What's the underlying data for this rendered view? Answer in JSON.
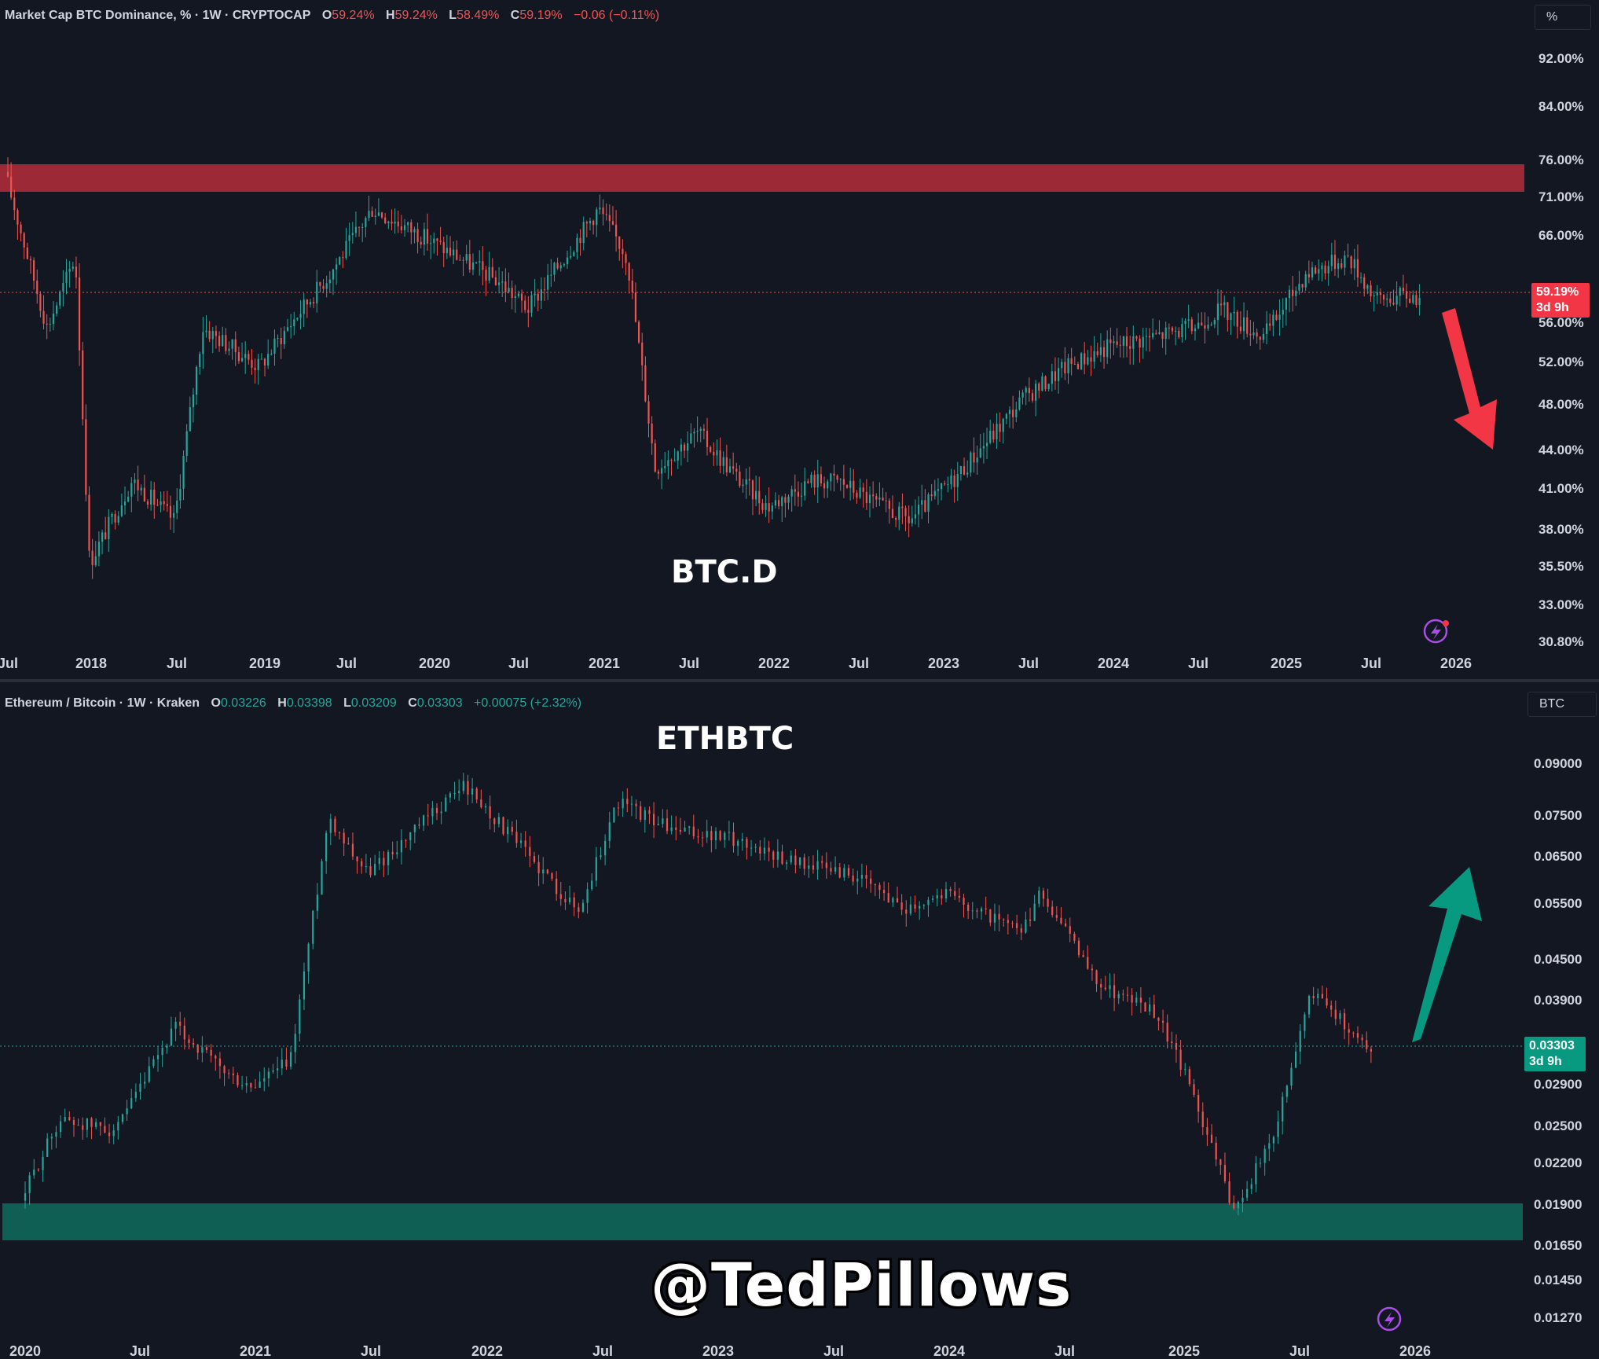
{
  "colors": {
    "background": "#131722",
    "up": "#26a69a",
    "down": "#ef5350",
    "resistance_zone": "#9c2a36",
    "support_zone": "#0f5f55",
    "arrow_down": "#f23645",
    "arrow_up": "#089981",
    "text": "#d1d4dc"
  },
  "charts": {
    "btc": {
      "legend": {
        "name": "Market Cap BTC Dominance, % · 1W · CRYPTOCAP",
        "o_label": "O",
        "o": "59.24%",
        "h_label": "H",
        "h": "59.24%",
        "l_label": "L",
        "l": "58.49%",
        "c_label": "C",
        "c": "59.19%",
        "change": "−0.06 (−0.11%)"
      },
      "unit_button": "%",
      "title": "BTC.D",
      "last_price": "59.19%",
      "countdown": "3d 9h",
      "y_ticks": [
        "92.00%",
        "84.00%",
        "76.00%",
        "71.00%",
        "66.00%",
        "56.00%",
        "52.00%",
        "48.00%",
        "44.00%",
        "41.00%",
        "38.00%",
        "35.50%",
        "33.00%",
        "30.80%"
      ],
      "x_ticks": [
        "Jul",
        "2018",
        "Jul",
        "2019",
        "Jul",
        "2020",
        "Jul",
        "2021",
        "Jul",
        "2022",
        "Jul",
        "2023",
        "Jul",
        "2024",
        "Jul",
        "2025",
        "Jul",
        "2026"
      ]
    },
    "eth": {
      "legend": {
        "name": "Ethereum / Bitcoin · 1W · Kraken",
        "o_label": "O",
        "o": "0.03226",
        "h_label": "H",
        "h": "0.03398",
        "l_label": "L",
        "l": "0.03209",
        "c_label": "C",
        "c": "0.03303",
        "change": "+0.00075 (+2.32%)"
      },
      "unit_button": "BTC",
      "title": "ETHBTC",
      "last_price": "0.03303",
      "countdown": "3d 9h",
      "y_ticks": [
        "0.09000",
        "0.07500",
        "0.06500",
        "0.05500",
        "0.04500",
        "0.03900",
        "0.02900",
        "0.02500",
        "0.02200",
        "0.01900",
        "0.01650",
        "0.01450",
        "0.01270"
      ],
      "x_ticks": [
        "2020",
        "Jul",
        "2021",
        "Jul",
        "2022",
        "Jul",
        "2023",
        "Jul",
        "2024",
        "Jul",
        "2025",
        "Jul",
        "2026"
      ]
    }
  },
  "watermark": "@TedPillows",
  "chart_data": [
    {
      "type": "line",
      "title": "BTC.D",
      "ylabel": "%",
      "y_scale": "log",
      "ylim": [
        30.8,
        92
      ],
      "resistance_zone": [
        72.5,
        76.0
      ],
      "series": [
        {
          "x": [
            "2017-07",
            "2017-10",
            "2017-12",
            "2018-01",
            "2018-04",
            "2018-07",
            "2018-09",
            "2019-01",
            "2019-03",
            "2019-06",
            "2019-09",
            "2019-12",
            "2020-03",
            "2020-06",
            "2020-08",
            "2020-11",
            "2021-01",
            "2021-03",
            "2021-05",
            "2021-08",
            "2021-11",
            "2022-01",
            "2022-04",
            "2022-06",
            "2022-09",
            "2022-11",
            "2023-02",
            "2023-05",
            "2023-07",
            "2023-10",
            "2024-01",
            "2024-04",
            "2024-07",
            "2024-09",
            "2024-12",
            "2025-03",
            "2025-06",
            "2025-08",
            "2025-10",
            "2025-11"
          ],
          "values": [
            75,
            56,
            64,
            36,
            42,
            39,
            56,
            52,
            56,
            62,
            70,
            67,
            64,
            61,
            58,
            65,
            70,
            64,
            43,
            46,
            42,
            40,
            42,
            42,
            40,
            39,
            42,
            46,
            49,
            52,
            54,
            55,
            56,
            58,
            55,
            62,
            64,
            59,
            59.5,
            59.19
          ]
        }
      ]
    },
    {
      "type": "line",
      "title": "ETHBTC",
      "ylabel": "BTC",
      "y_scale": "log",
      "ylim": [
        0.0127,
        0.09
      ],
      "support_zone": [
        0.017,
        0.0193
      ],
      "series": [
        {
          "x": [
            "2020-01",
            "2020-03",
            "2020-06",
            "2020-09",
            "2020-12",
            "2021-01",
            "2021-03",
            "2021-05",
            "2021-07",
            "2021-09",
            "2021-12",
            "2022-03",
            "2022-06",
            "2022-08",
            "2022-11",
            "2023-02",
            "2023-05",
            "2023-08",
            "2023-11",
            "2024-01",
            "2024-03",
            "2024-05",
            "2024-06",
            "2024-09",
            "2024-12",
            "2025-02",
            "2025-04",
            "2025-06",
            "2025-08",
            "2025-10",
            "2025-11"
          ],
          "values": [
            0.0195,
            0.026,
            0.025,
            0.036,
            0.03,
            0.029,
            0.032,
            0.076,
            0.062,
            0.07,
            0.085,
            0.068,
            0.054,
            0.08,
            0.072,
            0.07,
            0.065,
            0.062,
            0.055,
            0.058,
            0.054,
            0.05,
            0.058,
            0.042,
            0.038,
            0.028,
            0.019,
            0.024,
            0.041,
            0.036,
            0.03303
          ]
        }
      ]
    }
  ]
}
